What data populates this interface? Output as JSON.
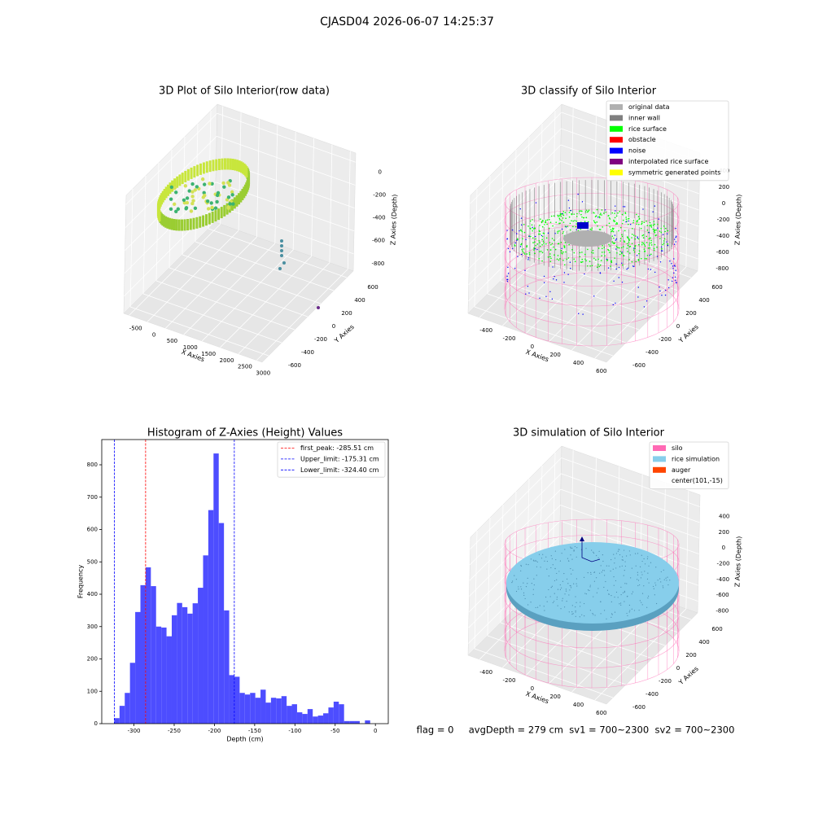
{
  "suptitle": "CJASD04 2026-06-07 14:25:37",
  "chart_data": [
    {
      "type": "scatter3d",
      "title": "3D Plot of Silo Interior(row data)",
      "x_label": "X Axies",
      "y_label": "Y Axies",
      "z_label": "Z Axies (Depth)",
      "xlim": [
        -650,
        3150
      ],
      "xticks": [
        -500,
        0,
        500,
        1000,
        1500,
        2000,
        2500,
        3000
      ],
      "ylim": [
        -700,
        700
      ],
      "yticks": [
        -600,
        -400,
        -200,
        0,
        200,
        400,
        600
      ],
      "zlim": [
        -950,
        80
      ],
      "zticks": [
        -800,
        -600,
        -400,
        -200,
        0
      ]
    },
    {
      "type": "scatter3d",
      "title": "3D classify of Silo Interior",
      "x_label": "X Axies",
      "y_label": "Y Axies",
      "z_label": "Z Axies (Depth)",
      "xlim": [
        -500,
        700
      ],
      "xticks": [
        -400,
        -200,
        0,
        200,
        400,
        600
      ],
      "ylim": [
        -700,
        700
      ],
      "yticks": [
        -600,
        -400,
        -200,
        0,
        200,
        400,
        600
      ],
      "zlim": [
        -950,
        500
      ],
      "zticks": [
        -800,
        -600,
        -400,
        -200,
        0,
        200,
        400
      ],
      "legend": [
        {
          "name": "original data",
          "color": "#b0b0b0"
        },
        {
          "name": "inner wall",
          "color": "#808080"
        },
        {
          "name": "rice surface",
          "color": "#00ff00"
        },
        {
          "name": "obstacle",
          "color": "#ff0000"
        },
        {
          "name": "noise",
          "color": "#0000ff"
        },
        {
          "name": "interpolated rice surface",
          "color": "#800080"
        },
        {
          "name": "symmetric generated points",
          "color": "#ffff00"
        }
      ]
    },
    {
      "type": "histogram",
      "title": "Histogram of Z-Axies (Height) Values",
      "x_label": "Depth (cm)",
      "y_label": "Frequency",
      "color": "#4d4dff",
      "bins": [
        -324.4,
        -317.91,
        -311.42,
        -304.94,
        -298.45,
        -291.96,
        -285.47,
        -278.98,
        -272.5,
        -266.01,
        -259.52,
        -253.03,
        -246.54,
        -240.06,
        -233.57,
        -227.08,
        -220.59,
        -214.1,
        -207.62,
        -201.13,
        -194.64,
        -188.15,
        -181.66,
        -175.18,
        -168.69,
        -162.2,
        -155.71,
        -149.22,
        -142.74,
        -136.25,
        -129.76,
        -123.27,
        -116.78,
        -110.3,
        -103.81,
        -97.32,
        -90.83,
        -84.34,
        -77.86,
        -71.37,
        -64.88,
        -58.39,
        -51.9,
        -45.42,
        -38.93,
        -32.44,
        -25.95,
        -19.46,
        -12.98,
        -6.49,
        0
      ],
      "counts": [
        17,
        55,
        95,
        188,
        345,
        428,
        483,
        425,
        300,
        297,
        270,
        335,
        373,
        360,
        340,
        372,
        420,
        520,
        660,
        835,
        620,
        350,
        150,
        145,
        95,
        90,
        95,
        80,
        105,
        65,
        80,
        78,
        85,
        55,
        60,
        35,
        30,
        45,
        22,
        25,
        32,
        50,
        68,
        60,
        8,
        8,
        8,
        0,
        10,
        0
      ],
      "xlim": [
        -340,
        16
      ],
      "xticks": [
        -300,
        -250,
        -200,
        -150,
        -100,
        -50,
        0
      ],
      "ylim": [
        0,
        878
      ],
      "yticks": [
        0,
        100,
        200,
        300,
        400,
        500,
        600,
        700,
        800
      ],
      "vlines": [
        {
          "name": "first_peak: -285.51 cm",
          "value": -285.51,
          "color": "#ff0000"
        },
        {
          "name": "Upper_limit: -175.31 cm",
          "value": -175.31,
          "color": "#0000ff"
        },
        {
          "name": "Lower_limit: -324.40 cm",
          "value": -324.4,
          "color": "#0000ff"
        }
      ]
    },
    {
      "type": "scatter3d",
      "title": "3D simulation of Silo Interior",
      "x_label": "X Axies",
      "y_label": "Y Axies",
      "z_label": "Z Axies (Depth)",
      "xlim": [
        -500,
        700
      ],
      "xticks": [
        -400,
        -200,
        0,
        200,
        400,
        600
      ],
      "ylim": [
        -700,
        700
      ],
      "yticks": [
        -600,
        -400,
        -200,
        0,
        200,
        400,
        600
      ],
      "zlim": [
        -950,
        550
      ],
      "zticks": [
        -800,
        -600,
        -400,
        -200,
        0,
        200,
        400
      ],
      "legend": [
        {
          "name": "silo",
          "color": "#ff69b4"
        },
        {
          "name": "rice simulation",
          "color": "#87ceeb"
        },
        {
          "name": "auger",
          "color": "#ff4500"
        },
        {
          "name": "center(101,-15)",
          "color": "none"
        }
      ],
      "footer": "flag = 0     avgDepth = 279 cm  sv1 = 700~2300  sv2 = 700~2300"
    }
  ]
}
